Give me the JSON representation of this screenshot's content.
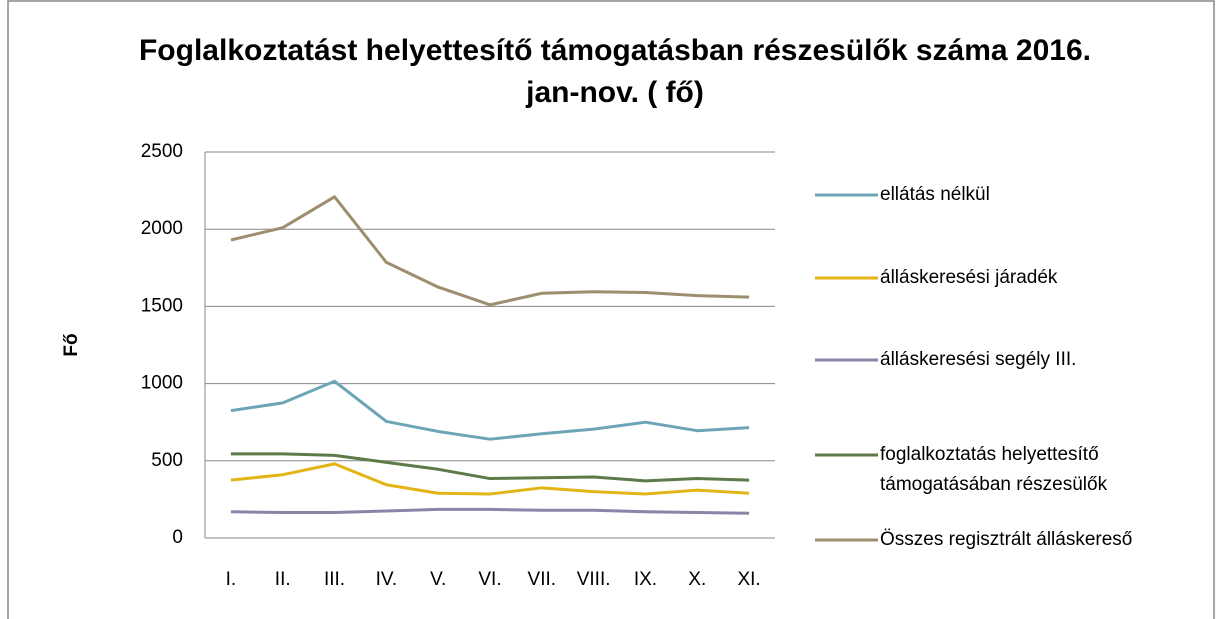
{
  "chart_data": {
    "type": "line",
    "title": "Foglalkoztatást helyettesítő támogatásban részesülők száma 2016. jan-nov. ( fő)",
    "y_label": "Fő",
    "categories": [
      "I.",
      "II.",
      "III.",
      "IV.",
      "V.",
      "VI.",
      "VII.",
      "VIII.",
      "IX.",
      "X.",
      "XI."
    ],
    "series": [
      {
        "name": "ellátás nélkül",
        "color": "#6ea5b6",
        "values": [
          825,
          875,
          1015,
          755,
          690,
          640,
          675,
          705,
          750,
          695,
          715
        ]
      },
      {
        "name": "álláskeresési járadék",
        "color": "#e3b416",
        "values": [
          375,
          410,
          480,
          345,
          290,
          285,
          325,
          300,
          285,
          310,
          290
        ]
      },
      {
        "name": "álláskeresési segély III.",
        "color": "#8c83a8",
        "values": [
          170,
          165,
          165,
          175,
          185,
          185,
          180,
          180,
          170,
          165,
          160
        ]
      },
      {
        "name": "foglalkoztatás helyettesítő támogatásában részesülők",
        "color": "#5d7a48",
        "values": [
          545,
          545,
          535,
          490,
          445,
          385,
          390,
          395,
          370,
          385,
          375
        ]
      },
      {
        "name": "Összes regisztrált álláskereső",
        "color": "#9d8f6e",
        "values": [
          1930,
          2010,
          2210,
          1785,
          1625,
          1510,
          1585,
          1595,
          1590,
          1570,
          1560
        ]
      }
    ],
    "ylim": [
      0,
      2500
    ],
    "yticks": [
      0,
      500,
      1000,
      1500,
      2000,
      2500
    ],
    "grid": true,
    "legend": "right"
  }
}
